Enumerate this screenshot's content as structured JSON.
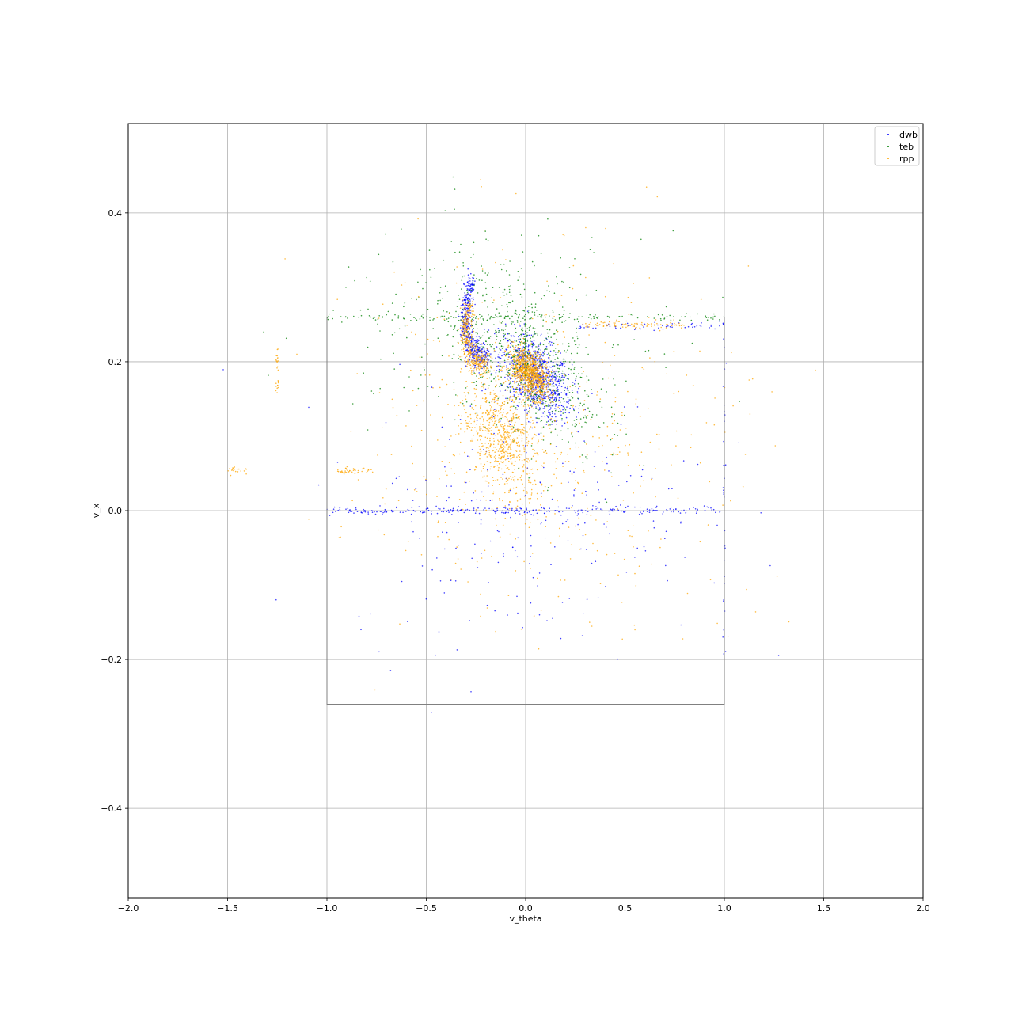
{
  "chart_data": {
    "type": "scatter",
    "xlabel": "v_theta",
    "ylabel": "v_x",
    "xlim": [
      -2.0,
      2.0
    ],
    "ylim": [
      -0.52,
      0.52
    ],
    "xticks": [
      -2.0,
      -1.5,
      -1.0,
      -0.5,
      0.0,
      0.5,
      1.0,
      1.5,
      2.0
    ],
    "xtick_labels": [
      "−2.0",
      "−1.5",
      "−1.0",
      "−0.5",
      "0.0",
      "0.5",
      "1.0",
      "1.5",
      "2.0"
    ],
    "yticks": [
      -0.4,
      -0.2,
      0.0,
      0.2,
      0.4
    ],
    "ytick_labels": [
      "−0.4",
      "−0.2",
      "0.0",
      "0.2",
      "0.4"
    ],
    "grid": true,
    "legend_position": "top-right",
    "bounding_box": {
      "x": [
        -1.0,
        1.0
      ],
      "y": [
        -0.26,
        0.26
      ],
      "color": "#808080"
    },
    "series": [
      {
        "name": "dwb",
        "color": "#0000ff",
        "clusters": [
          {
            "type": "blob",
            "cx": 0.05,
            "cy": 0.18,
            "sx": 0.09,
            "sy": 0.025,
            "n": 900
          },
          {
            "type": "arc",
            "cx": -0.22,
            "cy": 0.26,
            "sx": 0.06,
            "sy": 0.045,
            "n": 500
          },
          {
            "type": "line",
            "x": [
              -1.0,
              1.0
            ],
            "y": 0.0,
            "n": 260
          },
          {
            "type": "line",
            "x": [
              0.25,
              1.0
            ],
            "y": 0.248,
            "n": 60
          },
          {
            "type": "scatter",
            "cx": 0.0,
            "cy": 0.0,
            "sx": 0.45,
            "sy": 0.09,
            "n": 240
          },
          {
            "type": "vline",
            "x": 1.0,
            "y": [
              -0.2,
              0.26
            ],
            "n": 40
          }
        ]
      },
      {
        "name": "teb",
        "color": "#008000",
        "clusters": [
          {
            "type": "blob",
            "cx": 0.0,
            "cy": 0.2,
            "sx": 0.18,
            "sy": 0.05,
            "n": 650
          },
          {
            "type": "line",
            "x": [
              -1.0,
              1.0
            ],
            "y": 0.26,
            "n": 140
          },
          {
            "type": "vline",
            "x": 0.0,
            "y": [
              0.18,
              0.26
            ],
            "n": 60
          },
          {
            "type": "scatter",
            "cx": -0.2,
            "cy": 0.25,
            "sx": 0.4,
            "sy": 0.06,
            "n": 260
          }
        ]
      },
      {
        "name": "rpp",
        "color": "#ffa500",
        "clusters": [
          {
            "type": "blob",
            "cx": 0.02,
            "cy": 0.185,
            "sx": 0.05,
            "sy": 0.015,
            "n": 900
          },
          {
            "type": "blob",
            "cx": -0.12,
            "cy": 0.1,
            "sx": 0.1,
            "sy": 0.035,
            "n": 700
          },
          {
            "type": "arc",
            "cx": -0.22,
            "cy": 0.24,
            "sx": 0.06,
            "sy": 0.035,
            "n": 400
          },
          {
            "type": "line",
            "x": [
              0.3,
              0.8
            ],
            "y": 0.25,
            "n": 80
          },
          {
            "type": "line",
            "x": [
              -0.95,
              -0.75
            ],
            "y": 0.053,
            "n": 40
          },
          {
            "type": "line",
            "x": [
              -1.5,
              -1.4
            ],
            "y": 0.055,
            "n": 20
          },
          {
            "type": "vline",
            "x": -1.25,
            "y": [
              0.15,
              0.22
            ],
            "n": 25
          },
          {
            "type": "scatter",
            "cx": 0.1,
            "cy": 0.1,
            "sx": 0.45,
            "sy": 0.12,
            "n": 500
          }
        ]
      }
    ]
  }
}
